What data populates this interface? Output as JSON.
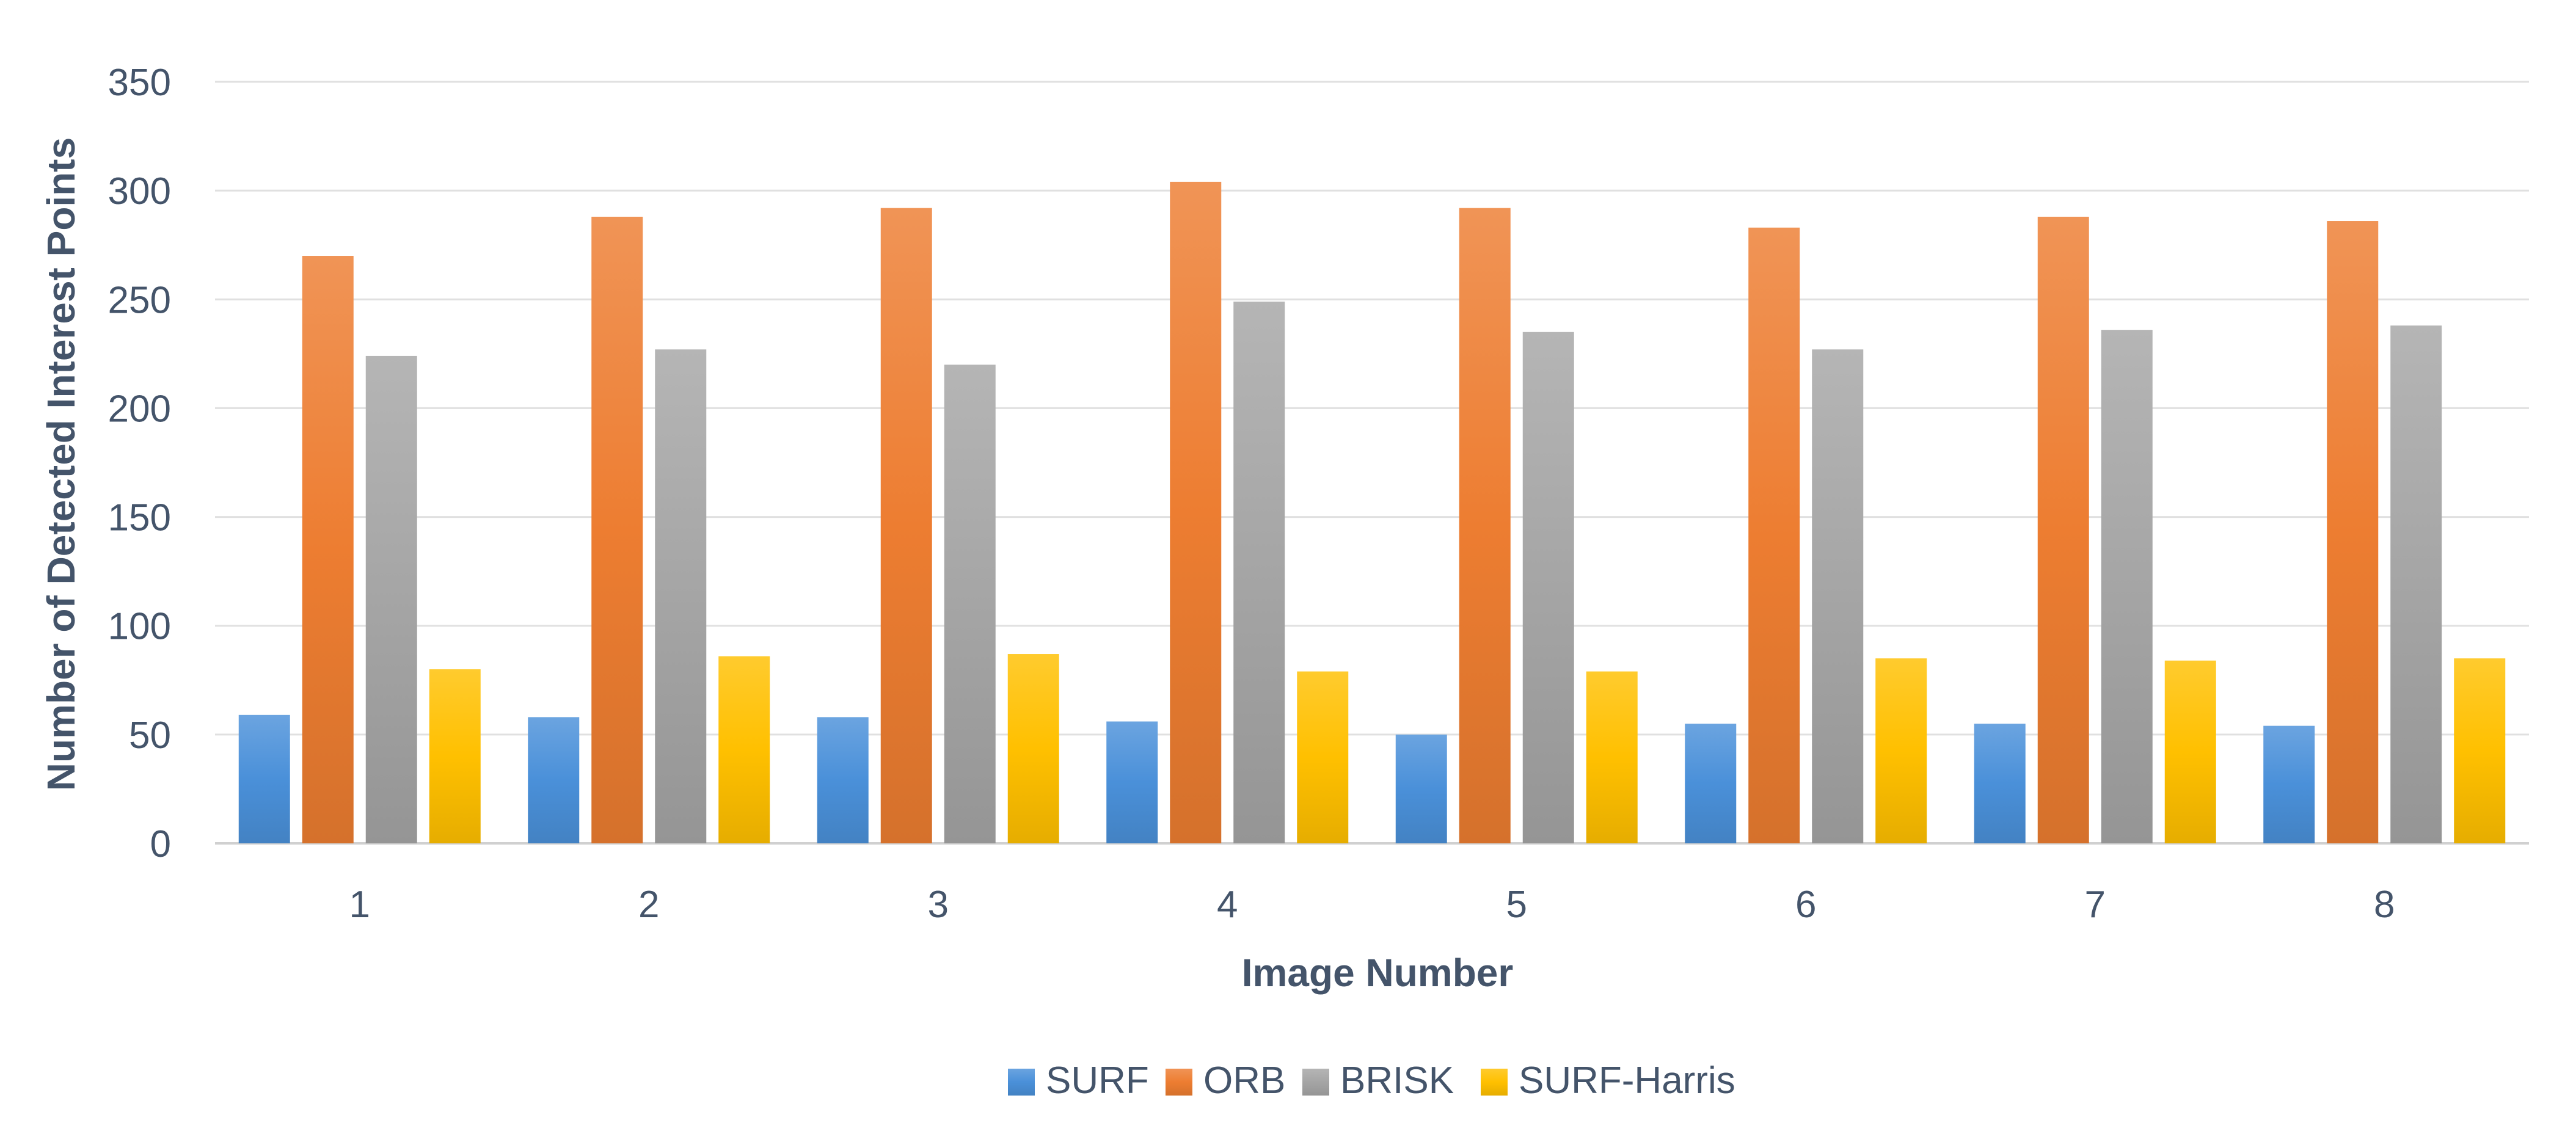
{
  "chart_data": {
    "type": "bar",
    "title": "",
    "xlabel": "Image Number",
    "ylabel": "Number of Detected Interest Points",
    "categories": [
      "1",
      "2",
      "3",
      "4",
      "5",
      "6",
      "7",
      "8"
    ],
    "ylim": [
      0,
      350
    ],
    "yticks": [
      0,
      50,
      100,
      150,
      200,
      250,
      300,
      350
    ],
    "grid": true,
    "legend_position": "bottom",
    "series": [
      {
        "name": "SURF",
        "color": "#4a90d9",
        "values": [
          59,
          58,
          58,
          56,
          50,
          55,
          55,
          54
        ]
      },
      {
        "name": "ORB",
        "color": "#ed7d31",
        "values": [
          270,
          288,
          292,
          304,
          292,
          283,
          288,
          286
        ]
      },
      {
        "name": "BRISK",
        "color": "#a5a5a5",
        "values": [
          224,
          227,
          220,
          249,
          235,
          227,
          236,
          238
        ]
      },
      {
        "name": "SURF-Harris",
        "color": "#ffc000",
        "values": [
          80,
          86,
          87,
          79,
          79,
          85,
          84,
          85
        ]
      }
    ]
  }
}
